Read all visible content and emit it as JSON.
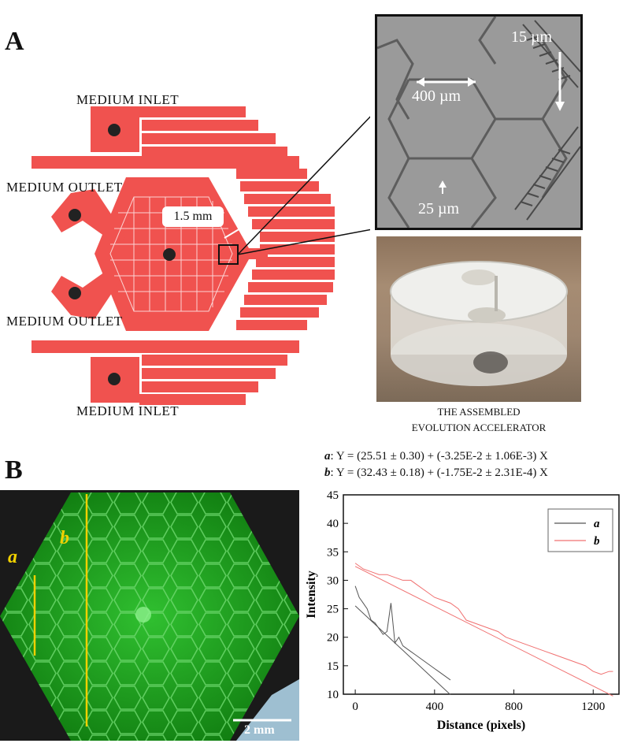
{
  "panel_a": {
    "letter": "A",
    "labels": {
      "inlet_top": "MEDIUM  INLET",
      "outlet_top": "MEDIUM  OUTLET",
      "outlet_bottom": "MEDIUM  OUTLET",
      "inlet_bottom": "MEDIUM  INLET",
      "width_callout": "1.5 mm"
    },
    "micrograph": {
      "gap_label": "400 µm",
      "channel_label": "15 µm",
      "slit_label": "25 µm"
    },
    "photo_caption_line1": "THE ASSEMBLED",
    "photo_caption_line2": "EVOLUTION ACCELERATOR",
    "colors": {
      "device": "#f0524f",
      "port": "#222222"
    }
  },
  "panel_b": {
    "letter": "B",
    "image": {
      "line_a_label": "a",
      "line_b_label": "b",
      "scale_bar": "2 mm",
      "colors": {
        "fluorescence": "#1aa21a",
        "line": "#f0d000"
      }
    },
    "fit_a": {
      "tag": "a",
      "text": ": Y = (25.51 ± 0.30) + (-3.25E-2 ± 1.06E-3) X"
    },
    "fit_b": {
      "tag": "b",
      "text": ": Y = (32.43 ± 0.18) + (-1.75E-2 ± 2.31E-4) X"
    }
  },
  "chart_data": {
    "type": "line",
    "xlabel": "Distance (pixels)",
    "ylabel": "Intensity",
    "xlim": [
      -60,
      1330
    ],
    "ylim": [
      10,
      45
    ],
    "xticks": [
      0,
      400,
      800,
      1200
    ],
    "yticks": [
      10,
      15,
      20,
      25,
      30,
      35,
      40,
      45
    ],
    "legend_position": "top-right",
    "series": [
      {
        "name": "a",
        "color": "#555555",
        "x": [
          0,
          20,
          40,
          60,
          80,
          100,
          120,
          140,
          160,
          180,
          200,
          220,
          240,
          260,
          280,
          300,
          320,
          340,
          360,
          380,
          400,
          420,
          440,
          460,
          480
        ],
        "values": [
          29,
          27,
          26,
          25,
          23,
          22.5,
          21.5,
          20.5,
          21,
          26,
          19,
          20,
          18.5,
          18,
          17.5,
          17,
          16.5,
          16,
          15.5,
          15,
          14.5,
          14,
          13.5,
          13,
          12.5
        ],
        "fit": [
          25.51,
          -0.0325
        ]
      },
      {
        "name": "b",
        "color": "#f07070",
        "x": [
          0,
          40,
          80,
          120,
          160,
          200,
          240,
          280,
          320,
          360,
          400,
          440,
          480,
          520,
          560,
          600,
          640,
          680,
          720,
          760,
          800,
          840,
          880,
          920,
          960,
          1000,
          1040,
          1080,
          1120,
          1160,
          1200,
          1240,
          1280,
          1300
        ],
        "values": [
          33,
          32,
          31.5,
          31,
          31,
          30.5,
          30,
          30,
          29,
          28,
          27,
          26.5,
          26,
          25,
          23,
          22.5,
          22,
          21.5,
          21,
          20,
          19.5,
          19,
          18.5,
          18,
          17.5,
          17,
          16.5,
          16,
          15.5,
          15,
          14,
          13.5,
          14,
          14
        ],
        "fit": [
          32.43,
          -0.0175
        ]
      }
    ]
  }
}
